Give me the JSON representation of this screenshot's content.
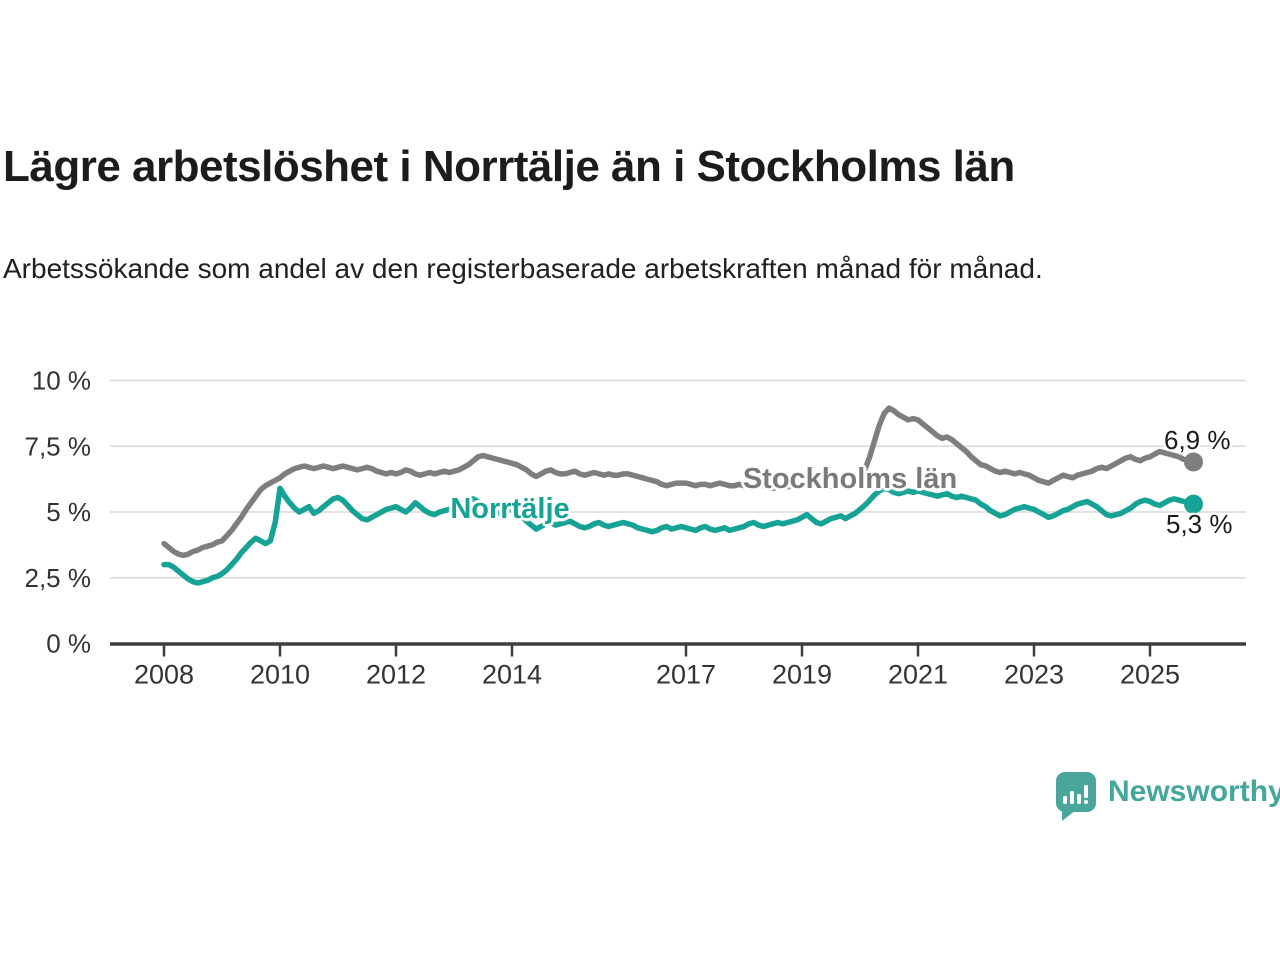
{
  "title": "Lägre arbetslöshet i Norrtälje än i Stockholms län",
  "subtitle": "Arbetssökande som andel av den registerbaserade arbetskraften månad för månad.",
  "branding": {
    "logo_text": "Newsworthy",
    "logo_color": "#4aa69b"
  },
  "chart_data": {
    "type": "line",
    "title": "Lägre arbetslöshet i Norrtälje än i Stockholms län",
    "xlabel": "",
    "ylabel": "",
    "ylim": [
      0,
      10
    ],
    "grid": true,
    "x_start": "2008-01",
    "x_end": "2025-10",
    "x_frequency": "monthly",
    "y_ticks": [
      {
        "value": 10,
        "label": "10 %"
      },
      {
        "value": 7.5,
        "label": "7,5 %"
      },
      {
        "value": 5,
        "label": "5 %"
      },
      {
        "value": 2.5,
        "label": "2,5 %"
      },
      {
        "value": 0,
        "label": "0 %"
      }
    ],
    "x_ticks": [
      {
        "year": 2008,
        "label": "2008"
      },
      {
        "year": 2010,
        "label": "2010"
      },
      {
        "year": 2012,
        "label": "2012"
      },
      {
        "year": 2014,
        "label": "2014"
      },
      {
        "year": 2017,
        "label": "2017"
      },
      {
        "year": 2019,
        "label": "2019"
      },
      {
        "year": 2021,
        "label": "2021"
      },
      {
        "year": 2023,
        "label": "2023"
      },
      {
        "year": 2025,
        "label": "2025"
      }
    ],
    "series": [
      {
        "name": "Stockholms län",
        "color": "#7e7e7e",
        "end_value": 6.9,
        "end_label": "6,9 %",
        "values": [
          3.8,
          3.65,
          3.5,
          3.4,
          3.35,
          3.4,
          3.5,
          3.55,
          3.65,
          3.7,
          3.75,
          3.85,
          3.9,
          4.1,
          4.3,
          4.55,
          4.8,
          5.1,
          5.35,
          5.6,
          5.85,
          6.0,
          6.1,
          6.2,
          6.3,
          6.45,
          6.55,
          6.65,
          6.7,
          6.75,
          6.7,
          6.65,
          6.7,
          6.75,
          6.7,
          6.65,
          6.7,
          6.75,
          6.7,
          6.65,
          6.6,
          6.65,
          6.7,
          6.65,
          6.55,
          6.5,
          6.45,
          6.5,
          6.45,
          6.5,
          6.6,
          6.55,
          6.45,
          6.4,
          6.45,
          6.5,
          6.45,
          6.5,
          6.55,
          6.5,
          6.55,
          6.6,
          6.7,
          6.8,
          6.95,
          7.1,
          7.15,
          7.1,
          7.05,
          7.0,
          6.95,
          6.9,
          6.85,
          6.8,
          6.7,
          6.6,
          6.45,
          6.35,
          6.45,
          6.55,
          6.6,
          6.5,
          6.45,
          6.45,
          6.5,
          6.55,
          6.45,
          6.4,
          6.45,
          6.5,
          6.45,
          6.4,
          6.45,
          6.4,
          6.4,
          6.45,
          6.45,
          6.4,
          6.35,
          6.3,
          6.25,
          6.2,
          6.15,
          6.05,
          6.0,
          6.05,
          6.1,
          6.1,
          6.1,
          6.05,
          6.0,
          6.05,
          6.05,
          6.0,
          6.05,
          6.1,
          6.05,
          6.0,
          6.0,
          6.05,
          6.0,
          5.95,
          6.0,
          6.05,
          6.0,
          5.95,
          5.9,
          5.95,
          6.0,
          5.95,
          6.0,
          6.05,
          6.0,
          6.05,
          6.1,
          6.05,
          6.0,
          6.05,
          6.0,
          6.05,
          6.1,
          6.05,
          6.0,
          6.1,
          6.3,
          6.6,
          7.1,
          7.7,
          8.3,
          8.75,
          8.95,
          8.85,
          8.7,
          8.6,
          8.5,
          8.55,
          8.5,
          8.35,
          8.2,
          8.05,
          7.9,
          7.8,
          7.85,
          7.75,
          7.6,
          7.45,
          7.3,
          7.1,
          6.95,
          6.8,
          6.75,
          6.65,
          6.55,
          6.5,
          6.55,
          6.5,
          6.45,
          6.5,
          6.45,
          6.4,
          6.3,
          6.2,
          6.15,
          6.1,
          6.2,
          6.3,
          6.4,
          6.35,
          6.3,
          6.4,
          6.45,
          6.5,
          6.55,
          6.65,
          6.7,
          6.65,
          6.75,
          6.85,
          6.95,
          7.05,
          7.1,
          7.0,
          6.95,
          7.05,
          7.1,
          7.2,
          7.3,
          7.25,
          7.2,
          7.15,
          7.1,
          7.0,
          6.95,
          6.9
        ]
      },
      {
        "name": "Norrtälje",
        "color": "#16a294",
        "end_value": 5.3,
        "end_label": "5,3 %",
        "values": [
          3.0,
          3.0,
          2.9,
          2.75,
          2.6,
          2.45,
          2.35,
          2.3,
          2.35,
          2.4,
          2.5,
          2.55,
          2.65,
          2.8,
          3.0,
          3.2,
          3.45,
          3.65,
          3.85,
          4.0,
          3.9,
          3.8,
          3.9,
          4.6,
          5.9,
          5.6,
          5.35,
          5.15,
          5.0,
          5.1,
          5.2,
          4.95,
          5.05,
          5.2,
          5.35,
          5.5,
          5.55,
          5.45,
          5.25,
          5.05,
          4.9,
          4.75,
          4.7,
          4.8,
          4.9,
          5.0,
          5.1,
          5.15,
          5.2,
          5.1,
          5.0,
          5.15,
          5.35,
          5.2,
          5.05,
          4.95,
          4.9,
          5.0,
          5.05,
          5.1,
          5.15,
          5.25,
          5.35,
          5.45,
          5.5,
          5.4,
          5.25,
          5.1,
          5.0,
          4.95,
          5.0,
          5.05,
          5.1,
          5.0,
          4.85,
          4.65,
          4.5,
          4.35,
          4.45,
          4.55,
          4.6,
          4.5,
          4.55,
          4.6,
          4.65,
          4.55,
          4.45,
          4.4,
          4.45,
          4.55,
          4.6,
          4.5,
          4.45,
          4.5,
          4.55,
          4.6,
          4.55,
          4.5,
          4.4,
          4.35,
          4.3,
          4.25,
          4.3,
          4.4,
          4.45,
          4.35,
          4.4,
          4.45,
          4.4,
          4.35,
          4.3,
          4.4,
          4.45,
          4.35,
          4.3,
          4.35,
          4.4,
          4.3,
          4.35,
          4.4,
          4.45,
          4.55,
          4.6,
          4.5,
          4.45,
          4.5,
          4.55,
          4.6,
          4.55,
          4.6,
          4.65,
          4.7,
          4.8,
          4.9,
          4.75,
          4.6,
          4.55,
          4.65,
          4.75,
          4.8,
          4.85,
          4.75,
          4.85,
          4.95,
          5.1,
          5.25,
          5.45,
          5.65,
          5.8,
          5.9,
          5.85,
          5.75,
          5.7,
          5.75,
          5.8,
          5.75,
          5.8,
          5.75,
          5.7,
          5.65,
          5.6,
          5.65,
          5.7,
          5.6,
          5.55,
          5.6,
          5.55,
          5.5,
          5.45,
          5.3,
          5.2,
          5.05,
          4.95,
          4.85,
          4.9,
          5.0,
          5.1,
          5.15,
          5.2,
          5.15,
          5.1,
          5.0,
          4.9,
          4.8,
          4.85,
          4.95,
          5.05,
          5.1,
          5.2,
          5.3,
          5.35,
          5.4,
          5.3,
          5.2,
          5.05,
          4.9,
          4.85,
          4.9,
          4.95,
          5.05,
          5.15,
          5.3,
          5.4,
          5.45,
          5.4,
          5.3,
          5.25,
          5.35,
          5.45,
          5.5,
          5.45,
          5.4,
          5.35,
          5.3
        ]
      }
    ]
  }
}
